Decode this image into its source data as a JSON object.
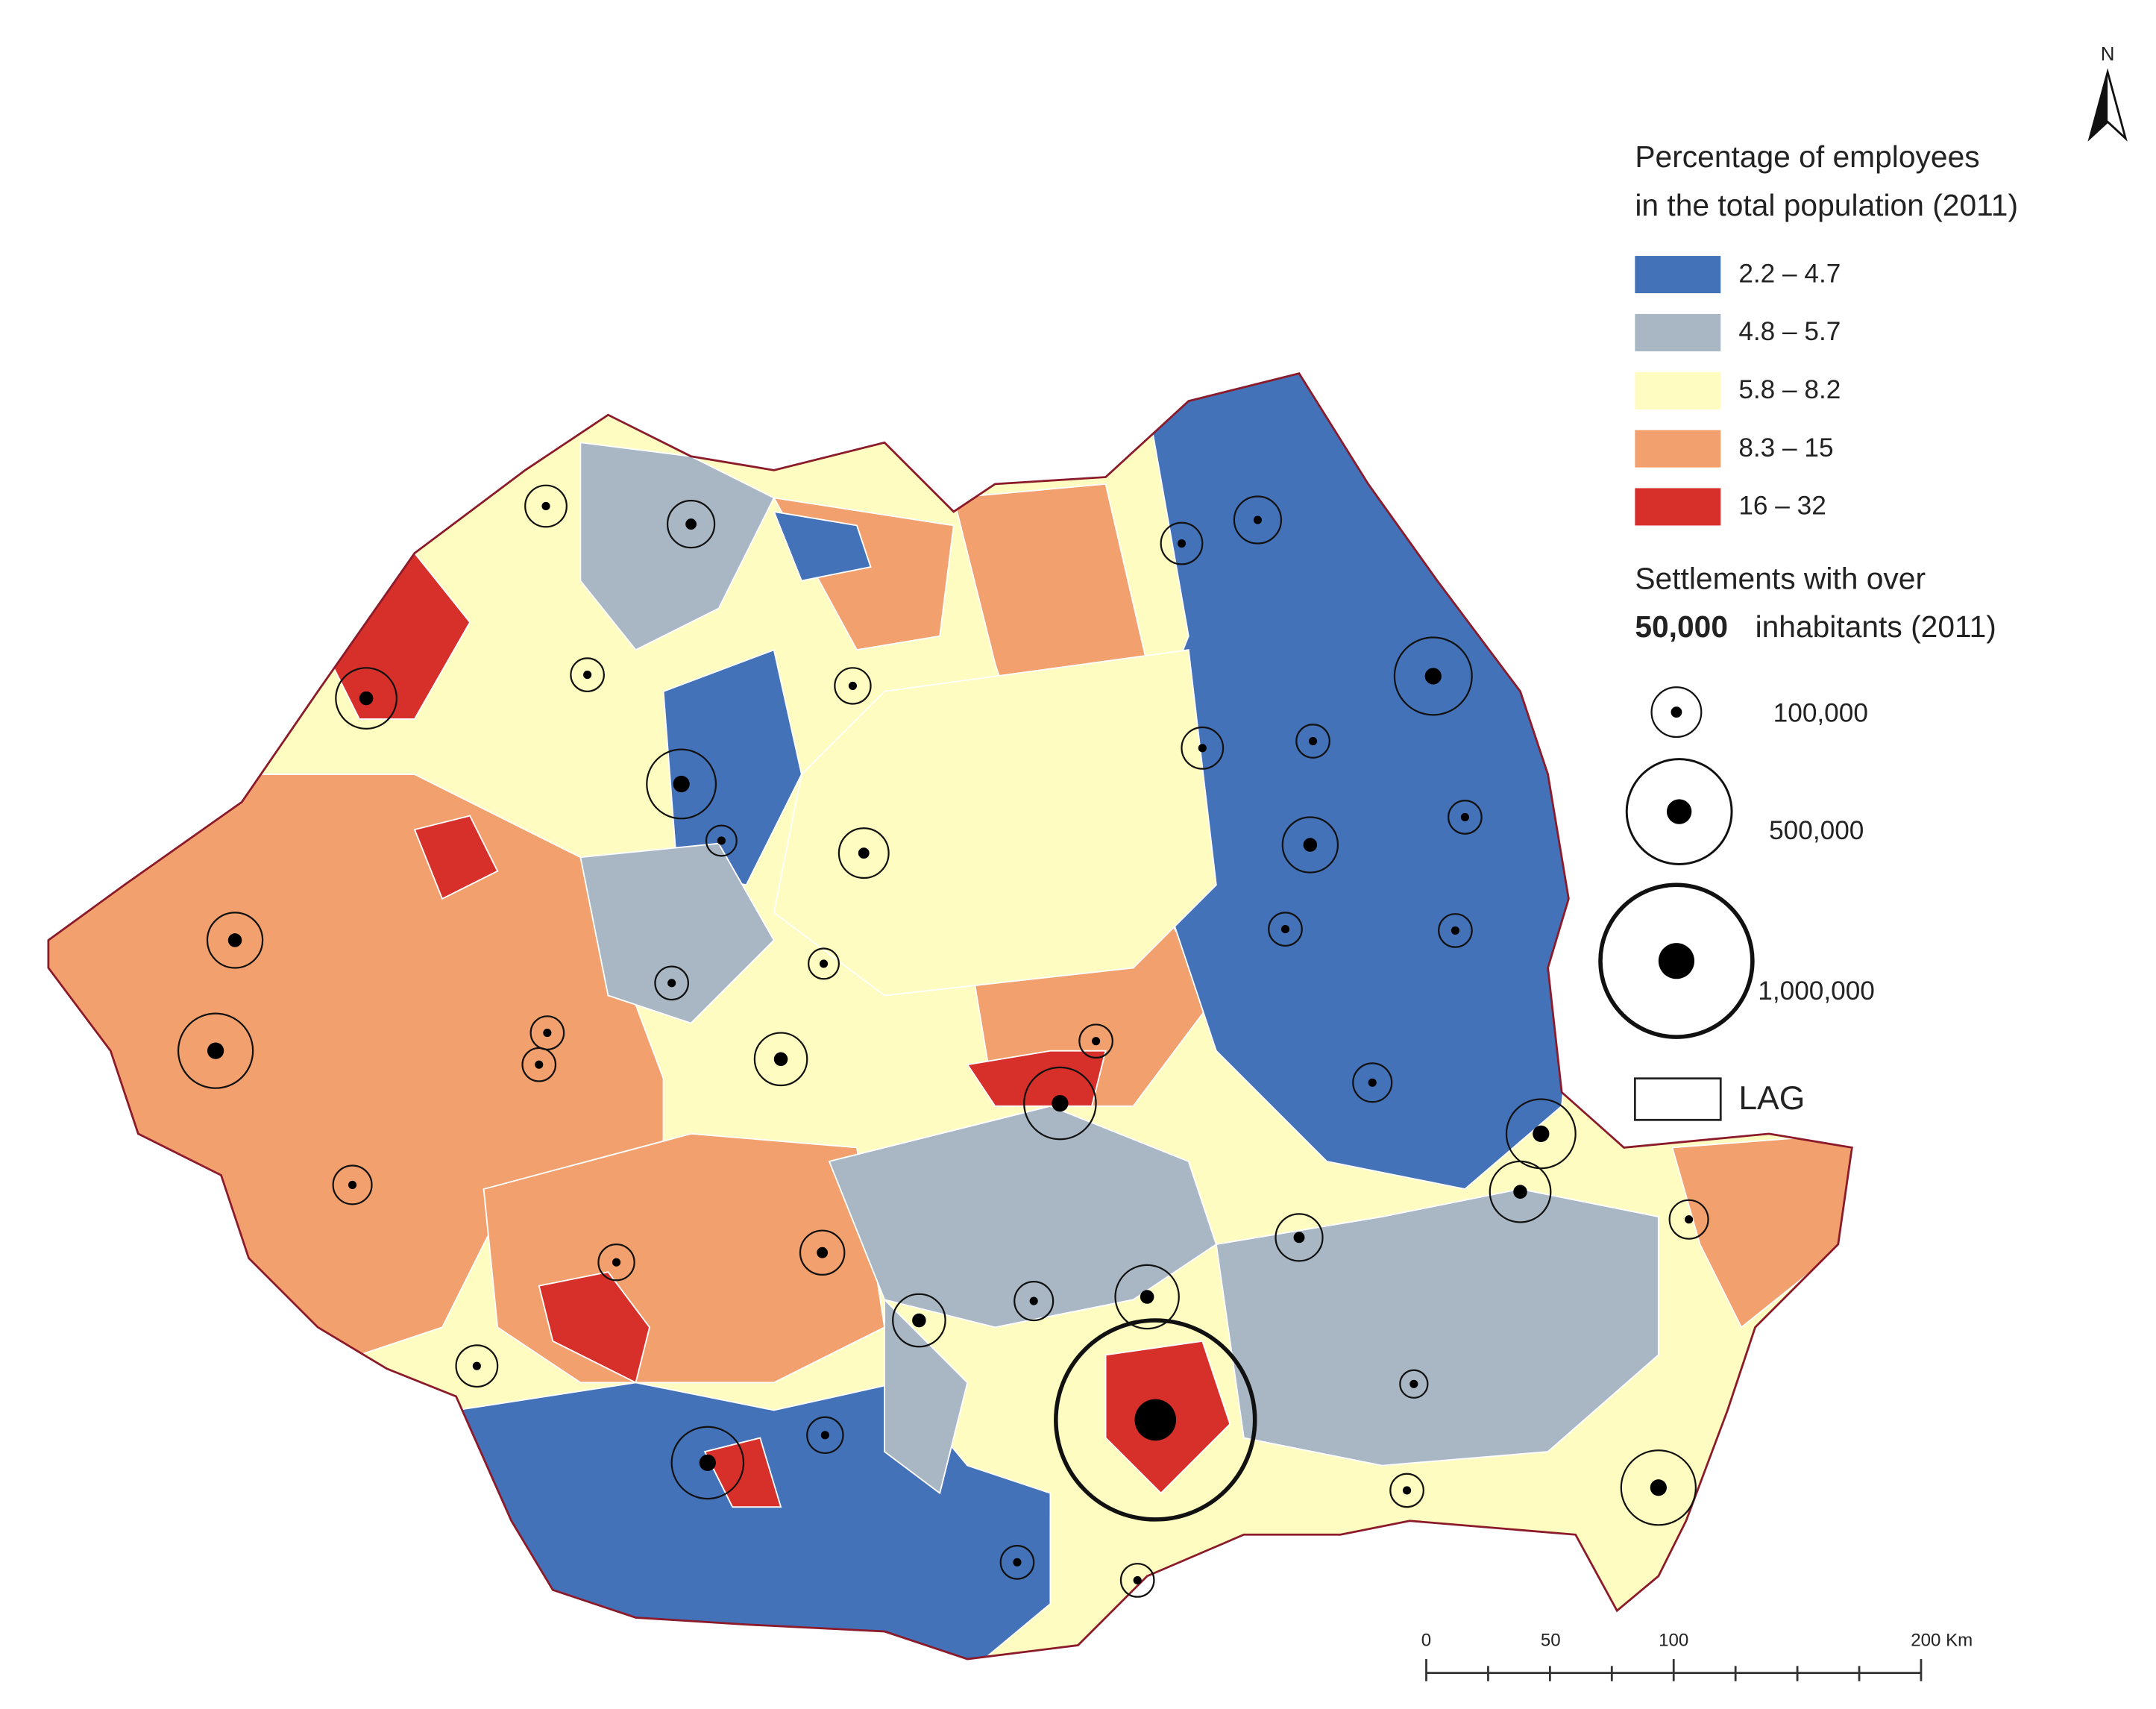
{
  "north": "N",
  "legend": {
    "title": [
      "Percentage of employees",
      "in the total population (2011)"
    ],
    "classes": [
      {
        "label": "2.2 – 4.7",
        "color": "#4472b8"
      },
      {
        "label": "4.8 – 5.7",
        "color": "#a9b7c4"
      },
      {
        "label": "5.8 – 8.2",
        "color": "#fefcc0"
      },
      {
        "label": "8.3 – 15",
        "color": "#f2a06e"
      },
      {
        "label": "16 – 32",
        "color": "#d7302b"
      }
    ],
    "settlements_title": "Settlements with over",
    "settlements_threshold": "50,000",
    "settlements_suffix": "inhabitants (2011)",
    "sizes": [
      "100,000",
      "500,000",
      "1,000,000"
    ],
    "lag": "LAG"
  },
  "scale_bar": [
    "0",
    "50",
    "100",
    "200 Km"
  ]
}
